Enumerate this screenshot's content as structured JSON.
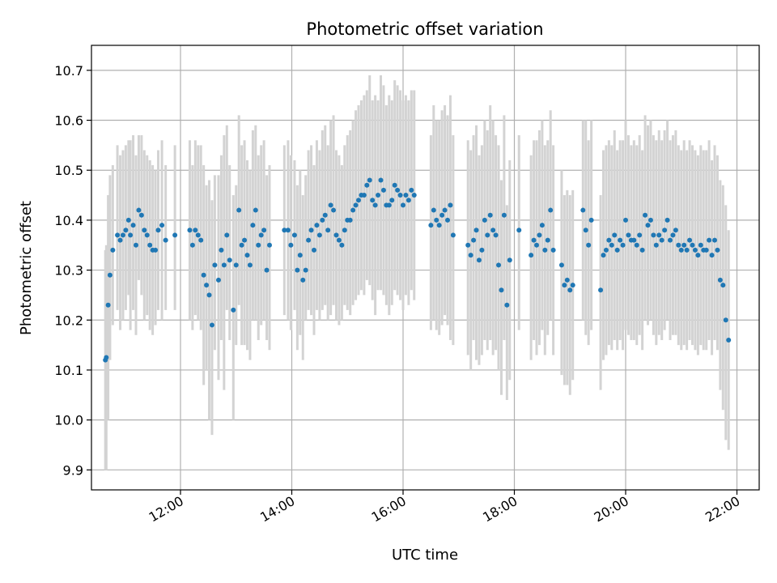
{
  "chart_data": {
    "type": "scatter",
    "title": "Photometric offset variation",
    "xlabel": "UTC time",
    "ylabel": "Photometric offset",
    "xlim": [
      "10:24",
      "22:24"
    ],
    "ylim": [
      9.86,
      10.75
    ],
    "grid": true,
    "x_ticks": [
      "12:00",
      "14:00",
      "16:00",
      "18:00",
      "20:00",
      "22:00"
    ],
    "y_ticks": [
      "9.9",
      "10.0",
      "10.1",
      "10.2",
      "10.3",
      "10.4",
      "10.5",
      "10.6",
      "10.7"
    ],
    "colors": {
      "points": "#1f77b4",
      "error_bars": "#d3d3d3",
      "grid": "#b0b0b0"
    },
    "series": [
      {
        "x": [
          "10:39",
          "10:40",
          "10:42",
          "10:44",
          "10:47",
          "10:52",
          "10:55",
          "10:58",
          "11:01",
          "11:04",
          "11:06",
          "11:09",
          "11:12",
          "11:15",
          "11:18",
          "11:21",
          "11:24",
          "11:27",
          "11:30",
          "11:33",
          "11:36",
          "11:40",
          "11:44",
          "11:54",
          "12:10",
          "12:13",
          "12:16",
          "12:19",
          "12:22",
          "12:25",
          "12:28",
          "12:31",
          "12:34",
          "12:37",
          "12:41",
          "12:44",
          "12:47",
          "12:50",
          "12:53",
          "12:57",
          "13:00",
          "13:03",
          "13:06",
          "13:09",
          "13:12",
          "13:15",
          "13:18",
          "13:21",
          "13:24",
          "13:27",
          "13:30",
          "13:33",
          "13:36",
          "13:52",
          "13:56",
          "13:59",
          "14:03",
          "14:06",
          "14:09",
          "14:12",
          "14:15",
          "14:18",
          "14:21",
          "14:24",
          "14:27",
          "14:30",
          "14:33",
          "14:36",
          "14:39",
          "14:42",
          "14:45",
          "14:48",
          "14:51",
          "14:54",
          "14:57",
          "15:00",
          "15:03",
          "15:06",
          "15:09",
          "15:12",
          "15:15",
          "15:18",
          "15:21",
          "15:24",
          "15:27",
          "15:30",
          "15:33",
          "15:36",
          "15:39",
          "15:42",
          "15:45",
          "15:48",
          "15:51",
          "15:54",
          "15:57",
          "16:00",
          "16:03",
          "16:06",
          "16:09",
          "16:12",
          "16:30",
          "16:33",
          "16:36",
          "16:39",
          "16:42",
          "16:45",
          "16:48",
          "16:51",
          "16:54",
          "17:10",
          "17:13",
          "17:16",
          "17:19",
          "17:22",
          "17:25",
          "17:28",
          "17:31",
          "17:34",
          "17:37",
          "17:40",
          "17:43",
          "17:46",
          "17:49",
          "17:52",
          "17:55",
          "18:05",
          "18:18",
          "18:21",
          "18:24",
          "18:27",
          "18:30",
          "18:33",
          "18:36",
          "18:39",
          "18:42",
          "18:51",
          "18:54",
          "18:57",
          "19:00",
          "19:03",
          "19:14",
          "19:17",
          "19:20",
          "19:23",
          "19:33",
          "19:36",
          "19:39",
          "19:42",
          "19:45",
          "19:48",
          "19:51",
          "19:54",
          "19:57",
          "20:00",
          "20:03",
          "20:06",
          "20:09",
          "20:12",
          "20:15",
          "20:18",
          "20:21",
          "20:24",
          "20:27",
          "20:30",
          "20:33",
          "20:36",
          "20:39",
          "20:42",
          "20:45",
          "20:48",
          "20:51",
          "20:54",
          "20:57",
          "21:00",
          "21:03",
          "21:06",
          "21:09",
          "21:12",
          "21:15",
          "21:18",
          "21:21",
          "21:24",
          "21:27",
          "21:30",
          "21:33",
          "21:36",
          "21:39",
          "21:42",
          "21:45",
          "21:48",
          "21:51"
        ],
        "y": [
          10.12,
          10.125,
          10.23,
          10.29,
          10.34,
          10.37,
          10.36,
          10.37,
          10.38,
          10.4,
          10.37,
          10.39,
          10.35,
          10.42,
          10.41,
          10.38,
          10.37,
          10.35,
          10.34,
          10.34,
          10.38,
          10.39,
          10.36,
          10.37,
          10.38,
          10.35,
          10.38,
          10.37,
          10.36,
          10.29,
          10.27,
          10.25,
          10.19,
          10.31,
          10.28,
          10.34,
          10.31,
          10.37,
          10.32,
          10.22,
          10.31,
          10.42,
          10.35,
          10.36,
          10.33,
          10.31,
          10.39,
          10.42,
          10.35,
          10.37,
          10.38,
          10.3,
          10.35,
          10.38,
          10.38,
          10.35,
          10.37,
          10.3,
          10.33,
          10.28,
          10.3,
          10.36,
          10.38,
          10.34,
          10.39,
          10.37,
          10.4,
          10.41,
          10.38,
          10.43,
          10.42,
          10.37,
          10.36,
          10.35,
          10.38,
          10.4,
          10.4,
          10.42,
          10.43,
          10.44,
          10.45,
          10.45,
          10.47,
          10.48,
          10.44,
          10.43,
          10.45,
          10.48,
          10.46,
          10.43,
          10.43,
          10.44,
          10.47,
          10.46,
          10.45,
          10.43,
          10.45,
          10.44,
          10.46,
          10.45,
          10.39,
          10.42,
          10.4,
          10.39,
          10.41,
          10.42,
          10.4,
          10.43,
          10.37,
          10.35,
          10.33,
          10.36,
          10.38,
          10.32,
          10.34,
          10.4,
          10.37,
          10.41,
          10.38,
          10.37,
          10.31,
          10.26,
          10.41,
          10.23,
          10.32,
          10.38,
          10.33,
          10.36,
          10.35,
          10.37,
          10.39,
          10.34,
          10.36,
          10.42,
          10.34,
          10.31,
          10.27,
          10.28,
          10.26,
          10.27,
          10.42,
          10.38,
          10.35,
          10.4,
          10.26,
          10.33,
          10.34,
          10.36,
          10.35,
          10.37,
          10.34,
          10.36,
          10.35,
          10.4,
          10.37,
          10.36,
          10.36,
          10.35,
          10.37,
          10.34,
          10.41,
          10.39,
          10.4,
          10.37,
          10.35,
          10.37,
          10.36,
          10.38,
          10.4,
          10.36,
          10.37,
          10.38,
          10.35,
          10.34,
          10.35,
          10.34,
          10.36,
          10.35,
          10.34,
          10.33,
          10.35,
          10.34,
          10.34,
          10.36,
          10.33,
          10.36,
          10.34,
          10.28,
          10.27,
          10.2,
          10.16
        ],
        "error_low": [
          9.9,
          9.9,
          10.0,
          10.12,
          10.19,
          10.22,
          10.18,
          10.2,
          10.22,
          10.25,
          10.18,
          10.22,
          10.17,
          10.28,
          10.25,
          10.2,
          10.21,
          10.18,
          10.17,
          10.19,
          10.22,
          10.2,
          10.22,
          10.22,
          10.2,
          10.18,
          10.21,
          10.2,
          10.18,
          10.07,
          10.1,
          10.0,
          9.97,
          10.14,
          10.08,
          10.16,
          10.06,
          10.22,
          10.16,
          10.0,
          10.15,
          10.23,
          10.15,
          10.15,
          10.14,
          10.12,
          10.2,
          10.2,
          10.16,
          10.19,
          10.2,
          10.16,
          10.14,
          10.21,
          10.2,
          10.18,
          10.22,
          10.14,
          10.17,
          10.12,
          10.2,
          10.22,
          10.21,
          10.17,
          10.22,
          10.2,
          10.22,
          10.23,
          10.2,
          10.21,
          10.23,
          10.2,
          10.19,
          10.2,
          10.23,
          10.22,
          10.21,
          10.23,
          10.24,
          10.25,
          10.26,
          10.25,
          10.28,
          10.27,
          10.24,
          10.21,
          10.26,
          10.26,
          10.25,
          10.23,
          10.21,
          10.23,
          10.26,
          10.25,
          10.24,
          10.22,
          10.25,
          10.23,
          10.26,
          10.24,
          10.18,
          10.2,
          10.18,
          10.17,
          10.19,
          10.21,
          10.19,
          10.16,
          10.15,
          10.13,
          10.1,
          10.16,
          10.12,
          10.11,
          10.13,
          10.16,
          10.14,
          10.16,
          10.13,
          10.14,
          10.1,
          10.05,
          10.16,
          10.04,
          10.08,
          10.18,
          10.12,
          10.16,
          10.13,
          10.15,
          10.18,
          10.13,
          10.17,
          10.2,
          10.13,
          10.09,
          10.07,
          10.07,
          10.05,
          10.08,
          10.2,
          10.17,
          10.15,
          10.18,
          10.06,
          10.12,
          10.13,
          10.15,
          10.14,
          10.16,
          10.14,
          10.16,
          10.14,
          10.18,
          10.17,
          10.16,
          10.16,
          10.15,
          10.17,
          10.14,
          10.2,
          10.19,
          10.2,
          10.17,
          10.15,
          10.17,
          10.16,
          10.18,
          10.2,
          10.16,
          10.17,
          10.17,
          10.15,
          10.14,
          10.15,
          10.14,
          10.16,
          10.15,
          10.14,
          10.13,
          10.15,
          10.14,
          10.14,
          10.16,
          10.13,
          10.16,
          10.14,
          10.06,
          10.02,
          9.96,
          9.94
        ],
        "error_high": [
          10.34,
          10.35,
          10.45,
          10.49,
          10.51,
          10.55,
          10.53,
          10.54,
          10.55,
          10.56,
          10.56,
          10.57,
          10.53,
          10.57,
          10.57,
          10.54,
          10.53,
          10.52,
          10.51,
          10.5,
          10.54,
          10.56,
          10.51,
          10.55,
          10.56,
          10.51,
          10.56,
          10.55,
          10.55,
          10.51,
          10.47,
          10.48,
          10.44,
          10.49,
          10.49,
          10.53,
          10.57,
          10.59,
          10.51,
          10.45,
          10.47,
          10.61,
          10.55,
          10.56,
          10.52,
          10.5,
          10.58,
          10.59,
          10.53,
          10.55,
          10.56,
          10.49,
          10.51,
          10.55,
          10.56,
          10.53,
          10.52,
          10.47,
          10.5,
          10.45,
          10.49,
          10.54,
          10.55,
          10.51,
          10.56,
          10.54,
          10.58,
          10.59,
          10.55,
          10.6,
          10.61,
          10.54,
          10.53,
          10.51,
          10.55,
          10.57,
          10.58,
          10.6,
          10.62,
          10.63,
          10.64,
          10.65,
          10.66,
          10.69,
          10.64,
          10.65,
          10.64,
          10.69,
          10.67,
          10.63,
          10.65,
          10.64,
          10.68,
          10.67,
          10.66,
          10.64,
          10.65,
          10.64,
          10.66,
          10.66,
          10.57,
          10.63,
          10.6,
          10.6,
          10.62,
          10.63,
          10.61,
          10.65,
          10.57,
          10.56,
          10.54,
          10.57,
          10.59,
          10.53,
          10.55,
          10.6,
          10.58,
          10.63,
          10.6,
          10.57,
          10.55,
          10.48,
          10.61,
          10.43,
          10.52,
          10.57,
          10.53,
          10.56,
          10.56,
          10.58,
          10.6,
          10.55,
          10.56,
          10.62,
          10.55,
          10.5,
          10.45,
          10.46,
          10.45,
          10.46,
          10.6,
          10.6,
          10.56,
          10.6,
          10.45,
          10.54,
          10.55,
          10.56,
          10.55,
          10.58,
          10.54,
          10.56,
          10.56,
          10.6,
          10.57,
          10.55,
          10.56,
          10.55,
          10.57,
          10.54,
          10.61,
          10.59,
          10.6,
          10.57,
          10.56,
          10.58,
          10.56,
          10.58,
          10.6,
          10.56,
          10.57,
          10.58,
          10.55,
          10.54,
          10.56,
          10.54,
          10.56,
          10.55,
          10.54,
          10.53,
          10.55,
          10.54,
          10.54,
          10.56,
          10.52,
          10.55,
          10.53,
          10.48,
          10.47,
          10.43,
          10.38
        ]
      }
    ]
  }
}
